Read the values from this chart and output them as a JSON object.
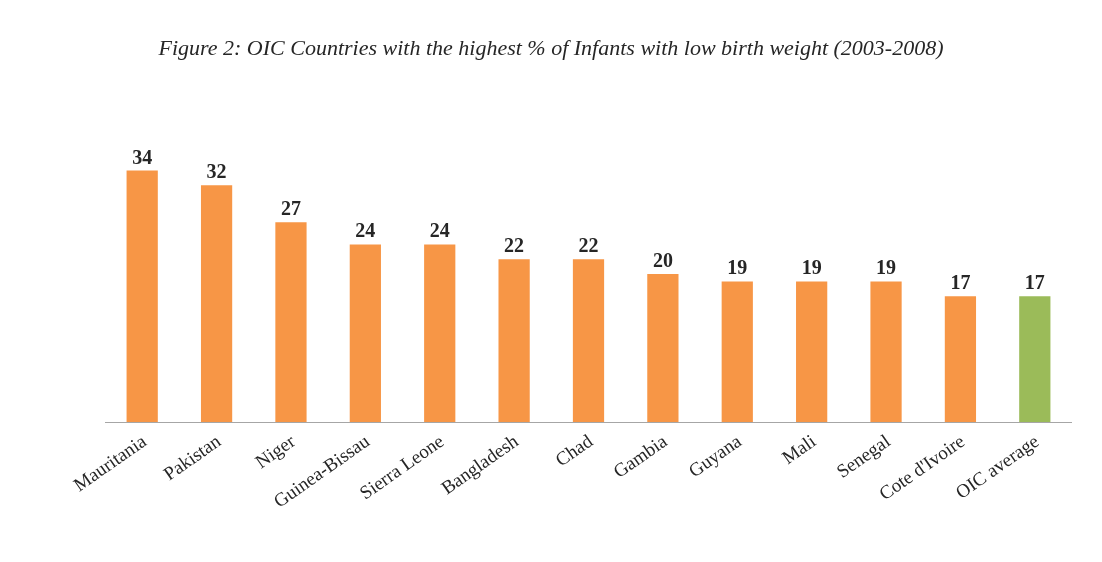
{
  "chart_data": {
    "type": "bar",
    "title": "Figure 2: OIC Countries with the highest % of Infants with low birth weight (2003-2008)",
    "categories": [
      "Mauritania",
      "Pakistan",
      "Niger",
      "Guinea-Bissau",
      "Sierra Leone",
      "Bangladesh",
      "Chad",
      "Gambia",
      "Guyana",
      "Mali",
      "Senegal",
      "Cote d'Ivoire",
      "OIC average"
    ],
    "values": [
      34,
      32,
      27,
      24,
      24,
      22,
      22,
      20,
      19,
      19,
      19,
      17,
      17
    ],
    "colors": [
      "#f79646",
      "#f79646",
      "#f79646",
      "#f79646",
      "#f79646",
      "#f79646",
      "#f79646",
      "#f79646",
      "#f79646",
      "#f79646",
      "#f79646",
      "#f79646",
      "#9bbb59"
    ],
    "data_labels": true
  }
}
